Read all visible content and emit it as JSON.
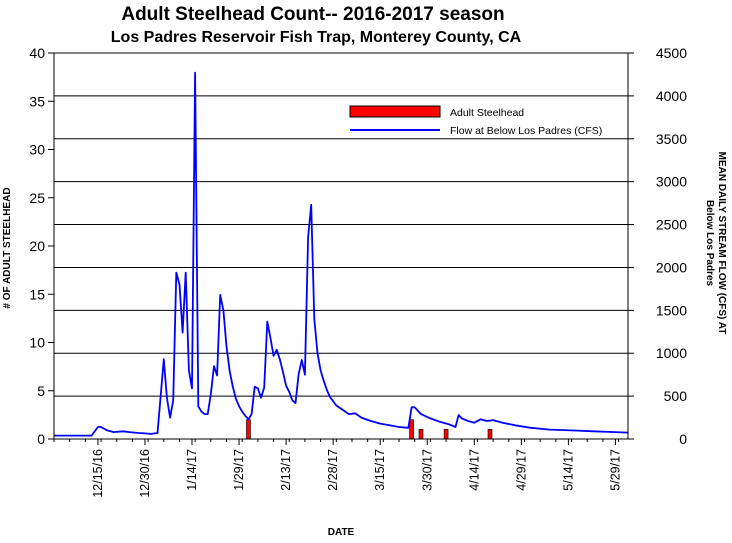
{
  "chart_data": {
    "type": "bar",
    "title": "Adult Steelhead Count-- 2016-2017 season",
    "subtitle": "Los Padres Reservoir Fish Trap, Monterey County, CA",
    "xlabel": "DATE",
    "ylabel": "# OF ADULT STEELHEAD",
    "y2label": "MEAN DAILY STREAM FLOW (CFS) AT",
    "y2label_sub": "Below Los Padres",
    "x_range": [
      "2016-12-01",
      "2017-06-02"
    ],
    "x_tick_labels": [
      "12/15/16",
      "12/30/16",
      "1/14/17",
      "1/29/17",
      "2/13/17",
      "2/28/17",
      "3/15/17",
      "3/30/17",
      "4/14/17",
      "4/29/17",
      "5/14/17",
      "5/29/17"
    ],
    "ylim": [
      0,
      40
    ],
    "y_ticks": [
      0,
      5,
      10,
      15,
      20,
      25,
      30,
      35,
      40
    ],
    "y2lim": [
      0,
      4500
    ],
    "y2_ticks": [
      0,
      500,
      1000,
      1500,
      2000,
      2500,
      3000,
      3500,
      4000,
      4500
    ],
    "grid": "horizontal at right-axis ticks",
    "legend_position": "top-right",
    "series": [
      {
        "name": "Adult Steelhead",
        "type": "bar",
        "axis": "left",
        "color": "#ff0000",
        "points": [
          {
            "x": "2017-02-01",
            "y": 2
          },
          {
            "x": "2017-03-25",
            "y": 2
          },
          {
            "x": "2017-03-28",
            "y": 1
          },
          {
            "x": "2017-04-05",
            "y": 1
          },
          {
            "x": "2017-04-19",
            "y": 1
          }
        ]
      },
      {
        "name": "Flow at Below Los Padres (CFS)",
        "type": "line",
        "axis": "right",
        "color": "#0000ff",
        "points": [
          [
            "2016-12-01",
            40
          ],
          [
            "2016-12-13",
            40
          ],
          [
            "2016-12-15",
            140
          ],
          [
            "2016-12-16",
            140
          ],
          [
            "2016-12-18",
            100
          ],
          [
            "2016-12-20",
            80
          ],
          [
            "2016-12-23",
            90
          ],
          [
            "2016-12-25",
            80
          ],
          [
            "2016-12-28",
            70
          ],
          [
            "2016-12-30",
            65
          ],
          [
            "2017-01-01",
            60
          ],
          [
            "2017-01-03",
            70
          ],
          [
            "2017-01-05",
            930
          ],
          [
            "2017-01-06",
            480
          ],
          [
            "2017-01-07",
            250
          ],
          [
            "2017-01-08",
            450
          ],
          [
            "2017-01-09",
            1940
          ],
          [
            "2017-01-10",
            1800
          ],
          [
            "2017-01-11",
            1240
          ],
          [
            "2017-01-12",
            1940
          ],
          [
            "2017-01-13",
            800
          ],
          [
            "2017-01-14",
            590
          ],
          [
            "2017-01-15",
            4270
          ],
          [
            "2017-01-16",
            380
          ],
          [
            "2017-01-17",
            320
          ],
          [
            "2017-01-18",
            290
          ],
          [
            "2017-01-19",
            290
          ],
          [
            "2017-01-20",
            520
          ],
          [
            "2017-01-21",
            850
          ],
          [
            "2017-01-22",
            740
          ],
          [
            "2017-01-23",
            1680
          ],
          [
            "2017-01-24",
            1500
          ],
          [
            "2017-01-25",
            1080
          ],
          [
            "2017-01-26",
            790
          ],
          [
            "2017-01-27",
            610
          ],
          [
            "2017-01-28",
            470
          ],
          [
            "2017-01-29",
            380
          ],
          [
            "2017-01-30",
            320
          ],
          [
            "2017-01-31",
            270
          ],
          [
            "2017-02-01",
            230
          ],
          [
            "2017-02-02",
            290
          ],
          [
            "2017-02-03",
            610
          ],
          [
            "2017-02-04",
            590
          ],
          [
            "2017-02-05",
            480
          ],
          [
            "2017-02-06",
            600
          ],
          [
            "2017-02-07",
            1370
          ],
          [
            "2017-02-08",
            1180
          ],
          [
            "2017-02-09",
            970
          ],
          [
            "2017-02-10",
            1040
          ],
          [
            "2017-02-11",
            930
          ],
          [
            "2017-02-12",
            780
          ],
          [
            "2017-02-13",
            620
          ],
          [
            "2017-02-14",
            550
          ],
          [
            "2017-02-15",
            450
          ],
          [
            "2017-02-16",
            420
          ],
          [
            "2017-02-17",
            760
          ],
          [
            "2017-02-18",
            920
          ],
          [
            "2017-02-19",
            750
          ],
          [
            "2017-02-20",
            2350
          ],
          [
            "2017-02-21",
            2730
          ],
          [
            "2017-02-22",
            1400
          ],
          [
            "2017-02-23",
            1000
          ],
          [
            "2017-02-24",
            800
          ],
          [
            "2017-02-25",
            680
          ],
          [
            "2017-02-26",
            570
          ],
          [
            "2017-02-27",
            490
          ],
          [
            "2017-03-01",
            390
          ],
          [
            "2017-03-03",
            340
          ],
          [
            "2017-03-05",
            290
          ],
          [
            "2017-03-07",
            300
          ],
          [
            "2017-03-09",
            250
          ],
          [
            "2017-03-12",
            210
          ],
          [
            "2017-03-15",
            180
          ],
          [
            "2017-03-18",
            160
          ],
          [
            "2017-03-21",
            140
          ],
          [
            "2017-03-24",
            130
          ],
          [
            "2017-03-25",
            370
          ],
          [
            "2017-03-26",
            370
          ],
          [
            "2017-03-28",
            290
          ],
          [
            "2017-03-31",
            240
          ],
          [
            "2017-04-03",
            200
          ],
          [
            "2017-04-06",
            170
          ],
          [
            "2017-04-08",
            140
          ],
          [
            "2017-04-09",
            280
          ],
          [
            "2017-04-10",
            240
          ],
          [
            "2017-04-12",
            210
          ],
          [
            "2017-04-14",
            190
          ],
          [
            "2017-04-16",
            230
          ],
          [
            "2017-04-18",
            210
          ],
          [
            "2017-04-20",
            220
          ],
          [
            "2017-04-23",
            190
          ],
          [
            "2017-04-27",
            160
          ],
          [
            "2017-05-02",
            130
          ],
          [
            "2017-05-08",
            110
          ],
          [
            "2017-05-15",
            100
          ],
          [
            "2017-05-22",
            90
          ],
          [
            "2017-05-29",
            80
          ],
          [
            "2017-06-02",
            75
          ]
        ]
      }
    ]
  }
}
